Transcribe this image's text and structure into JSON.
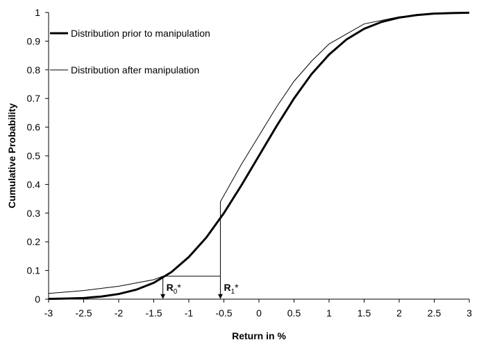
{
  "chart_data": {
    "type": "line",
    "xlabel": "Return in %",
    "ylabel": "Cumulative Probability",
    "xlim": [
      -3,
      3
    ],
    "ylim": [
      0,
      1
    ],
    "xticks": [
      -3,
      -2.5,
      -2,
      -1.5,
      -1,
      -0.5,
      0,
      0.5,
      1,
      1.5,
      2,
      2.5,
      3
    ],
    "yticks": [
      0,
      0.1,
      0.2,
      0.3,
      0.4,
      0.5,
      0.6,
      0.7,
      0.8,
      0.9,
      1
    ],
    "grid": false,
    "legend": "upper left",
    "series": [
      {
        "name": "Distribution prior to manipulation",
        "color": "#000000",
        "width": 3,
        "x": [
          -3,
          -2.75,
          -2.5,
          -2.25,
          -2,
          -1.75,
          -1.5,
          -1.25,
          -1,
          -0.75,
          -0.5,
          -0.25,
          0,
          0.25,
          0.5,
          0.75,
          1,
          1.25,
          1.5,
          1.75,
          2,
          2.25,
          2.5,
          2.75,
          3
        ],
        "values": [
          0.0008,
          0.002,
          0.004,
          0.009,
          0.018,
          0.033,
          0.057,
          0.094,
          0.147,
          0.215,
          0.3,
          0.397,
          0.5,
          0.603,
          0.7,
          0.785,
          0.853,
          0.906,
          0.943,
          0.967,
          0.982,
          0.991,
          0.996,
          0.998,
          0.999
        ]
      },
      {
        "name": "Distribution after manipulation",
        "color": "#000000",
        "width": 1,
        "x": [
          -3,
          -2.5,
          -2,
          -1.5,
          -1.37,
          -0.55,
          -0.55,
          -0.25,
          0,
          0.25,
          0.5,
          0.75,
          1,
          1.5,
          2,
          2.5,
          3
        ],
        "values": [
          0.02,
          0.03,
          0.045,
          0.068,
          0.08,
          0.08,
          0.34,
          0.47,
          0.57,
          0.67,
          0.76,
          0.83,
          0.89,
          0.96,
          0.985,
          0.997,
          1
        ]
      }
    ],
    "annotations": [
      {
        "base": "R",
        "sub": "0",
        "mark": "*",
        "x": -1.37,
        "y": 0.08
      },
      {
        "base": "R",
        "sub": "1",
        "mark": "*",
        "x": -0.55,
        "y": 0.08
      }
    ]
  }
}
